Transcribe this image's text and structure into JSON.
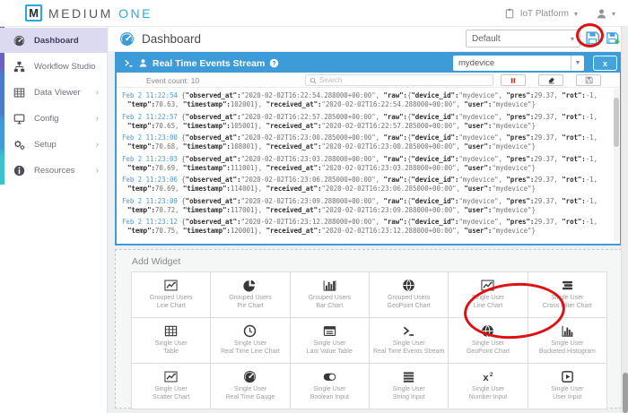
{
  "brand": {
    "logo_letter": "M",
    "name_primary": "MEDIUM",
    "name_secondary": "ONE"
  },
  "topbar": {
    "platform_menu_label": "IoT Platform"
  },
  "sidebar": {
    "items": [
      {
        "icon": "gauge",
        "label": "Dashboard",
        "active": true,
        "chevron": ""
      },
      {
        "icon": "sitemap",
        "label": "Workflow Studio",
        "active": false,
        "chevron": ""
      },
      {
        "icon": "table",
        "label": "Data Viewer",
        "active": false,
        "chevron": "›"
      },
      {
        "icon": "monitor",
        "label": "Config",
        "active": false,
        "chevron": "›"
      },
      {
        "icon": "gears",
        "label": "Setup",
        "active": false,
        "chevron": "›"
      },
      {
        "icon": "info",
        "label": "Resources",
        "active": false,
        "chevron": "›"
      }
    ]
  },
  "page": {
    "title": "Dashboard",
    "dashboard_select_value": "Default"
  },
  "stream": {
    "title": "Real Time Events Stream",
    "device_select_value": "mydevice",
    "event_count_label": "Event count: 10",
    "search_placeholder": "Search",
    "close_label": "x",
    "events": [
      {
        "time": "Feb 2 11:22:54",
        "json": "{\"observed_at\":\"2020-02-02T16:22:54.288000+00:00\", \"raw\":{\"device_id\":\"mydevice\", \"pres\":29.37, \"rot\":-1, \"temp\":70.63, \"timestamp\":102001}, \"received_at\":\"2020-02-02T16:22:54.288000+00:00\", \"user\":\"mydevice\"}"
      },
      {
        "time": "Feb 2 11:22:57",
        "json": "{\"observed_at\":\"2020-02-02T16:22:57.285000+00:00\", \"raw\":{\"device_id\":\"mydevice\", \"pres\":29.37, \"rot\":-1, \"temp\":70.65, \"timestamp\":105001}, \"received_at\":\"2020-02-02T16:22:57.285000+00:00\", \"user\":\"mydevice\"}"
      },
      {
        "time": "Feb 2 11:23:00",
        "json": "{\"observed_at\":\"2020-02-02T16:23:00.285000+00:00\", \"raw\":{\"device_id\":\"mydevice\", \"pres\":29.37, \"rot\":-1, \"temp\":70.68, \"timestamp\":108001}, \"received_at\":\"2020-02-02T16:23:00.285000+00:00\", \"user\":\"mydevice\"}"
      },
      {
        "time": "Feb 2 11:23:03",
        "json": "{\"observed_at\":\"2020-02-02T16:23:03.288000+00:00\", \"raw\":{\"device_id\":\"mydevice\", \"pres\":29.37, \"rot\":-1, \"temp\":70.69, \"timestamp\":111001}, \"received_at\":\"2020-02-02T16:23:03.288000+00:00\", \"user\":\"mydevice\"}"
      },
      {
        "time": "Feb 2 11:23:06",
        "json": "{\"observed_at\":\"2020-02-02T16:23:06.285000+00:00\", \"raw\":{\"device_id\":\"mydevice\", \"pres\":29.37, \"rot\":-1, \"temp\":70.69, \"timestamp\":114001}, \"received_at\":\"2020-02-02T16:23:06.285000+00:00\", \"user\":\"mydevice\"}"
      },
      {
        "time": "Feb 2 11:23:09",
        "json": "{\"observed_at\":\"2020-02-02T16:23:09.288000+00:00\", \"raw\":{\"device_id\":\"mydevice\", \"pres\":29.37, \"rot\":-1, \"temp\":70.72, \"timestamp\":117001}, \"received_at\":\"2020-02-02T16:23:09.288000+00:00\", \"user\":\"mydevice\"}"
      },
      {
        "time": "Feb 2 11:23:12",
        "json": "{\"observed_at\":\"2020-02-02T16:23:12.288000+00:00\", \"raw\":{\"device_id\":\"mydevice\", \"pres\":29.37, \"rot\":-1, \"temp\":70.75, \"timestamp\":120001}, \"received_at\":\"2020-02-02T16:23:12.288000+00:00\", \"user\":\"mydevice\"}"
      }
    ]
  },
  "add_widget": {
    "title": "Add Widget",
    "cells": [
      {
        "icon": "line-chart",
        "line1": "Grouped Users",
        "line2": "Line Chart"
      },
      {
        "icon": "pie",
        "line1": "Grouped Users",
        "line2": "Pie Chart"
      },
      {
        "icon": "bar",
        "line1": "Grouped Users",
        "line2": "Bar Chart"
      },
      {
        "icon": "globe",
        "line1": "Grouped Users",
        "line2": "GeoPoint Chart"
      },
      {
        "icon": "line-chart",
        "line1": "Single User",
        "line2": "Line Chart"
      },
      {
        "icon": "cross-filter",
        "line1": "Single User",
        "line2": "Cross Filter Chart"
      },
      {
        "icon": "table",
        "line1": "Single User",
        "line2": "Table"
      },
      {
        "icon": "clock",
        "line1": "Single User",
        "line2": "Real Time Line Chart"
      },
      {
        "icon": "last-value",
        "line1": "Single User",
        "line2": "Last Value Table"
      },
      {
        "icon": "terminal",
        "line1": "Single User",
        "line2": "Real Time Events Stream"
      },
      {
        "icon": "globe",
        "line1": "Single User",
        "line2": "GeoPoint Chart"
      },
      {
        "icon": "histogram",
        "line1": "Single User",
        "line2": "Bucketed Histogram"
      },
      {
        "icon": "line-chart",
        "line1": "Single User",
        "line2": "Scatter Chart"
      },
      {
        "icon": "gauge",
        "line1": "Single User",
        "line2": "Real Time Gauge"
      },
      {
        "icon": "toggle",
        "line1": "Single User",
        "line2": "Boolean Input"
      },
      {
        "icon": "string",
        "line1": "Single User",
        "line2": "String Input"
      },
      {
        "icon": "x2",
        "line1": "Single User",
        "line2": "Number Input"
      },
      {
        "icon": "play-box",
        "line1": "Single User",
        "line2": "User Input"
      }
    ]
  },
  "annotations": {
    "red_circles": [
      "save-dashboard-button",
      "widget-cell-single-user-real-time-events-stream"
    ]
  },
  "colors": {
    "accent_blue": "#3d9bd8",
    "logo_blue": "#29abe2",
    "annotation_red": "#dd1111",
    "pause_red": "#c0392b",
    "active_sidebar_bg": "#dbdaf0",
    "timestamp_blue": "#4d9bd9",
    "save_icon_blue": "#4aa3d8",
    "save_plus_green": "#3cb54a"
  }
}
